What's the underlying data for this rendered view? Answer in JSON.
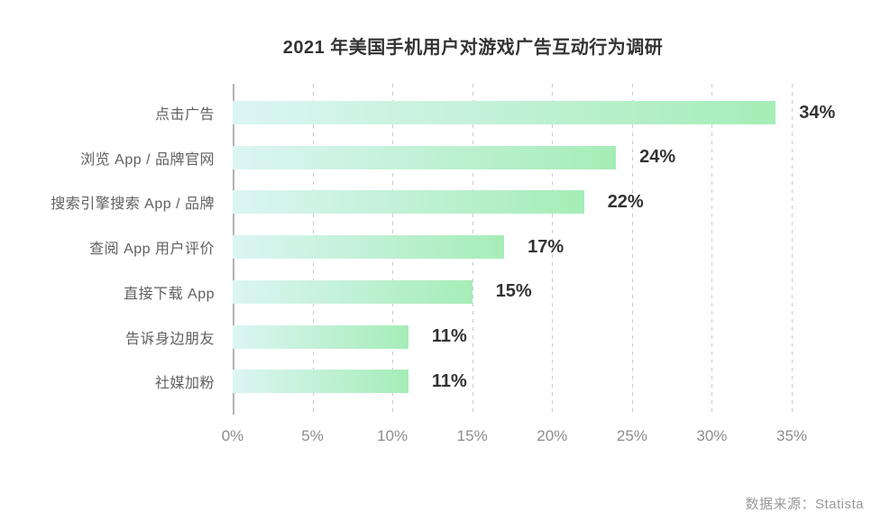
{
  "chart_data": {
    "type": "bar",
    "orientation": "horizontal",
    "title": "2021 年美国手机用户对游戏广告互动行为调研",
    "categories": [
      "点击广告",
      "浏览 App / 品牌官网",
      "搜索引擎搜索 App / 品牌",
      "查阅 App 用户评价",
      "直接下载 App",
      "告诉身边朋友",
      "社媒加粉"
    ],
    "values": [
      34,
      24,
      22,
      17,
      15,
      11,
      11
    ],
    "value_labels": [
      "34%",
      "24%",
      "22%",
      "17%",
      "15%",
      "11%",
      "11%"
    ],
    "xlabel": "",
    "ylabel": "",
    "xlim": [
      0,
      35
    ],
    "x_ticks": [
      "0%",
      "5%",
      "10%",
      "15%",
      "20%",
      "25%",
      "30%",
      "35%"
    ],
    "x_tick_values": [
      0,
      5,
      10,
      15,
      20,
      25,
      30,
      35
    ],
    "grid": "vertical-dashed",
    "legend": "none",
    "bar_gradient_start": "#dcf5f4",
    "bar_gradient_end": "#a5edb7",
    "gridline_color": "#cbcbcb",
    "axis_line_color": "#b3b3b3",
    "value_label_color": "#333333",
    "category_label_color": "#606060",
    "tick_label_color": "#8c8c8c"
  },
  "source": {
    "label": "数据来源：Statista"
  }
}
